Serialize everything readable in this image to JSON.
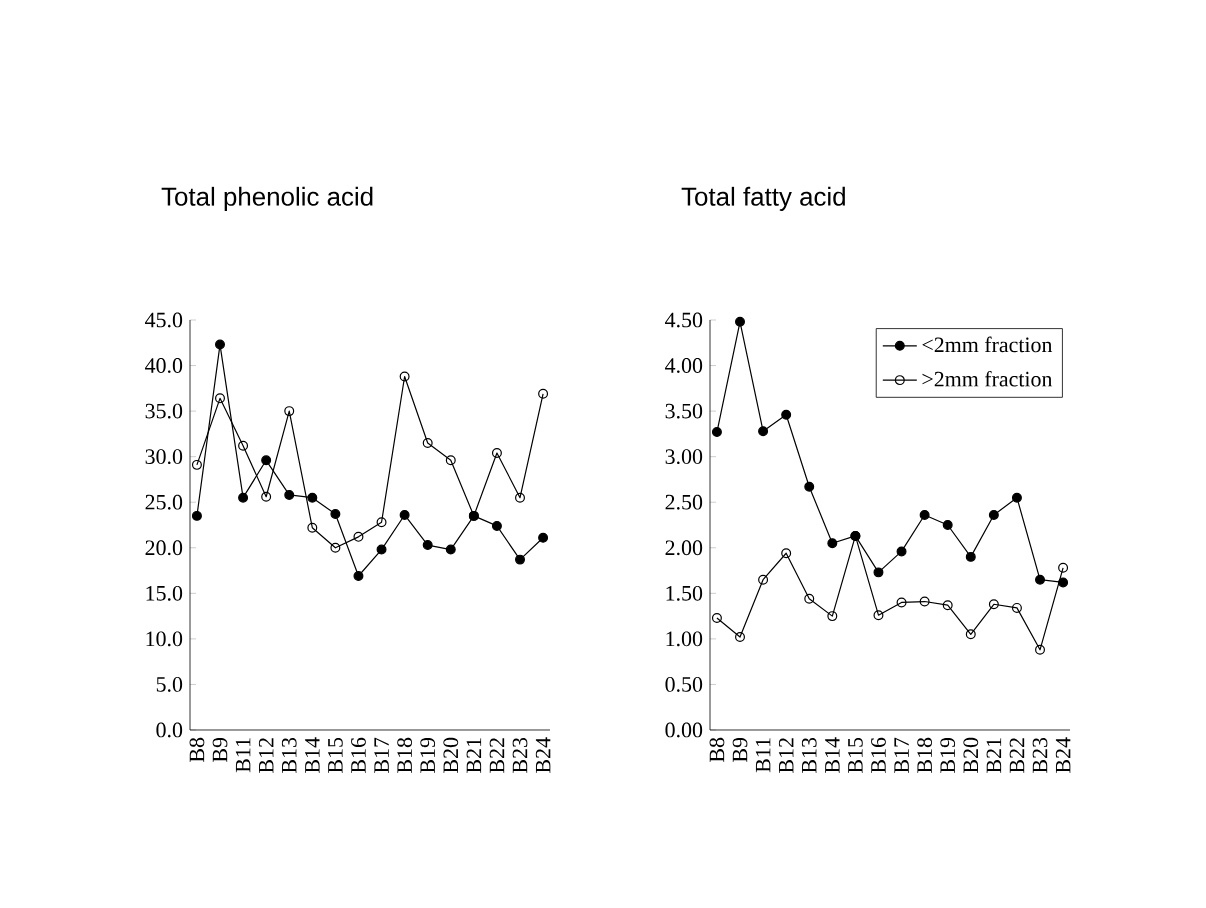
{
  "chart_data": [
    {
      "type": "line",
      "title": "Total phenolic acid",
      "categories": [
        "B8",
        "B9",
        "B11",
        "B12",
        "B13",
        "B14",
        "B15",
        "B16",
        "B17",
        "B18",
        "B19",
        "B20",
        "B21",
        "B22",
        "B23",
        "B24"
      ],
      "series": [
        {
          "color": "#000000",
          "marker": "circle",
          "values": [
            23.5,
            42.3,
            25.5,
            29.6,
            25.8,
            25.5,
            23.7,
            16.9,
            19.8,
            23.6,
            20.3,
            19.8,
            23.5,
            22.4,
            18.7,
            21.1
          ]
        },
        {
          "color": "#000000",
          "marker": "open circle",
          "values": [
            29.1,
            36.4,
            31.2,
            25.6,
            35.0,
            22.2,
            20.0,
            21.2,
            22.8,
            38.8,
            31.5,
            29.6,
            23.5,
            30.4,
            25.5,
            36.9
          ]
        }
      ],
      "ylim": [
        0,
        45
      ],
      "yticks": [
        {
          "value": 0,
          "label": "0.0"
        },
        {
          "value": 5,
          "label": "5.0"
        },
        {
          "value": 10,
          "label": "10.0"
        },
        {
          "value": 15,
          "label": "15.0"
        },
        {
          "value": 20,
          "label": "20.0"
        },
        {
          "value": 25,
          "label": "25.0"
        },
        {
          "value": 30,
          "label": "30.0"
        },
        {
          "value": 35,
          "label": "35.0"
        },
        {
          "value": 40,
          "label": "40.0"
        },
        {
          "value": 45,
          "label": "45.0"
        }
      ],
      "line_style": "solid"
    },
    {
      "type": "line",
      "title": "Total fatty acid",
      "categories": [
        "B8",
        "B9",
        "B11",
        "B12",
        "B13",
        "B14",
        "B15",
        "B16",
        "B17",
        "B18",
        "B19",
        "B20",
        "B21",
        "B22",
        "B23",
        "B24"
      ],
      "series": [
        {
          "name": "<2mm fraction",
          "color": "#000000",
          "marker": "circle",
          "values": [
            3.27,
            4.48,
            3.28,
            3.46,
            2.67,
            2.05,
            2.13,
            1.73,
            1.96,
            2.36,
            2.25,
            1.9,
            2.36,
            2.55,
            1.65,
            1.62
          ]
        },
        {
          "name": ">2mm fraction",
          "color": "#000000",
          "marker": "open circle",
          "values": [
            1.23,
            1.02,
            1.65,
            1.94,
            1.44,
            1.25,
            2.13,
            1.26,
            1.4,
            1.41,
            1.37,
            1.05,
            1.38,
            1.34,
            0.88,
            1.78
          ]
        }
      ],
      "ylim": [
        0,
        4.5
      ],
      "yticks": [
        {
          "value": 0,
          "label": "0.00"
        },
        {
          "value": 0.5,
          "label": "0.50"
        },
        {
          "value": 1,
          "label": "1.00"
        },
        {
          "value": 1.5,
          "label": "1.50"
        },
        {
          "value": 2,
          "label": "2.00"
        },
        {
          "value": 2.5,
          "label": "2.50"
        },
        {
          "value": 3,
          "label": "3.00"
        },
        {
          "value": 3.5,
          "label": "3.50"
        },
        {
          "value": 4,
          "label": "4.00"
        },
        {
          "value": 4.5,
          "label": "4.50"
        }
      ],
      "legend": "top right",
      "line_style": "solid"
    }
  ]
}
